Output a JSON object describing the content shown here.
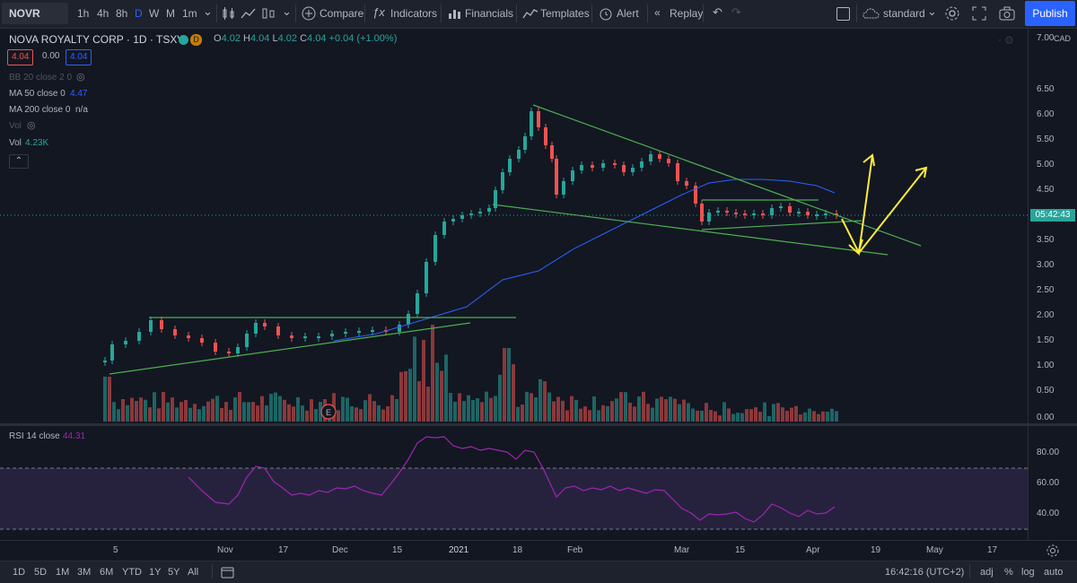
{
  "toolbar": {
    "symbol": "NOVR",
    "intervals": [
      "1h",
      "4h",
      "8h",
      "D",
      "W",
      "M",
      "1m"
    ],
    "compare": "Compare",
    "indicators": "Indicators",
    "financials": "Financials",
    "templates": "Templates",
    "alert": "Alert",
    "replay": "Replay",
    "layout": "standard",
    "publish": "Publish"
  },
  "legend": {
    "title": "NOVA ROYALTY CORP · 1D · TSXV",
    "badge": "D",
    "ohlc_o_label": "O",
    "ohlc_o": "4.02",
    "ohlc_h_label": "H",
    "ohlc_h": "4.04",
    "ohlc_l_label": "L",
    "ohlc_l": "4.02",
    "ohlc_c_label": "C",
    "ohlc_c": "4.04",
    "change": "+0.04 (+1.00%)",
    "bid": "4.04",
    "spread": "0.00",
    "ask": "4.04",
    "bb": "BB 20 close 2 0",
    "ma50_label": "MA 50 close 0",
    "ma50_value": "4.47",
    "ma200_label": "MA 200 close 0",
    "ma200_value": "n/a",
    "vol_hidden": "Vol",
    "vol_label": "Vol",
    "vol_value": "4.23K",
    "rsi_label": "RSI 14 close",
    "rsi_value": "44.31",
    "earnings_marker": "E"
  },
  "price_axis": {
    "currency": "CAD",
    "ticks": [
      "7.00",
      "6.50",
      "6.00",
      "5.50",
      "5.00",
      "4.50",
      "3.50",
      "3.00",
      "2.50",
      "2.00",
      "1.50",
      "1.00",
      "0.50",
      "0.00"
    ],
    "last_price_countdown": "05:42:43",
    "rsi_ticks": [
      "80.00",
      "60.00",
      "40.00"
    ]
  },
  "time_axis": {
    "labels": [
      "5",
      "Nov",
      "17",
      "Dec",
      "15",
      "2021",
      "18",
      "Feb",
      "Mar",
      "15",
      "Apr",
      "19",
      "May",
      "17"
    ]
  },
  "bottom_bar": {
    "ranges": [
      "1D",
      "5D",
      "1M",
      "3M",
      "6M",
      "YTD",
      "1Y",
      "5Y",
      "All"
    ],
    "clock": "16:42:16 (UTC+2)",
    "adj": "adj",
    "percent": "%",
    "log": "log",
    "auto": "auto"
  },
  "colors": {
    "up": "#26a69a",
    "down": "#ef5350",
    "trendline": "#4caf50",
    "arrow": "#ffeb3b",
    "ma50": "#2962ff",
    "rsi": "#9c27b0",
    "accent": "#2962ff"
  }
}
